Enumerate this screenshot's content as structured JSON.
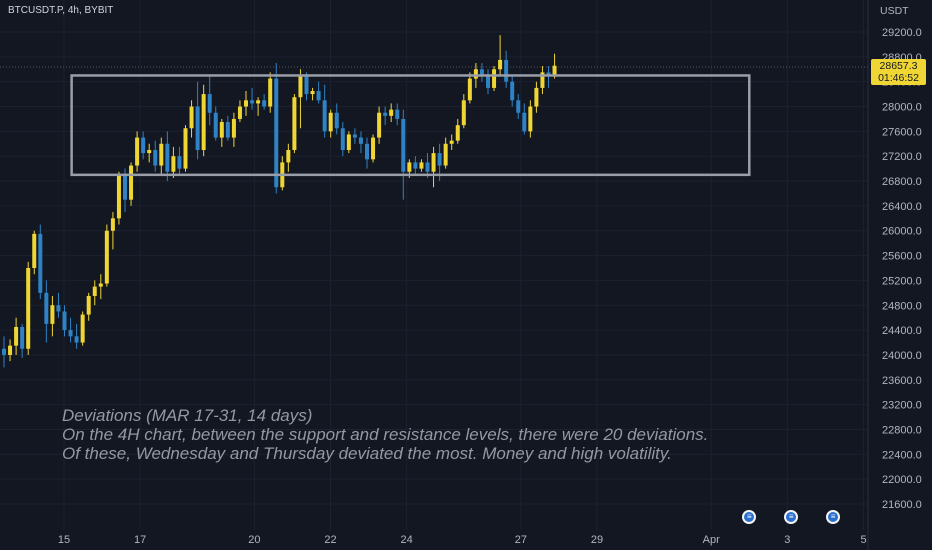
{
  "header": {
    "symbol": "BTCUSDT.P, 4h, BYBIT",
    "currency": "USDT"
  },
  "price_tag": {
    "price": "28657.3",
    "countdown": "01:46:52"
  },
  "annotation": {
    "line1": "Deviations (MAR 17-31, 14 days)",
    "line2": "On the 4H chart, between the support and resistance levels, there were 20 deviations.",
    "line3": "Of these, Wednesday and Thursday deviated the most. Money and high volatility."
  },
  "colors": {
    "up": "#f0d635",
    "down": "#2f82c4",
    "background": "#131722",
    "box": "#9a9ea8",
    "tag": "#f0d635"
  },
  "chart_data": {
    "type": "candlestick",
    "y_ticks": [
      "29200.0",
      "28800.0",
      "28400.0",
      "28000.0",
      "27600.0",
      "27200.0",
      "26800.0",
      "26400.0",
      "26000.0",
      "25600.0",
      "25200.0",
      "24800.0",
      "24400.0",
      "24000.0",
      "23600.0",
      "23200.0",
      "22800.0",
      "22400.0",
      "22000.0",
      "21600.0"
    ],
    "x_ticks": [
      {
        "label": "15",
        "day": 15
      },
      {
        "label": "17",
        "day": 17
      },
      {
        "label": "20",
        "day": 20
      },
      {
        "label": "22",
        "day": 22
      },
      {
        "label": "24",
        "day": 24
      },
      {
        "label": "27",
        "day": 27
      },
      {
        "label": "29",
        "day": 29
      },
      {
        "label": "Apr",
        "day": 32
      },
      {
        "label": "3",
        "day": 34
      },
      {
        "label": "5",
        "day": 36
      }
    ],
    "last_price": 28657.3,
    "range_box": {
      "start_day": 15.2,
      "end_day": 33.0,
      "resistance": 28500,
      "support": 26900
    },
    "event_icons": [
      33.0,
      34.1,
      35.2
    ],
    "candles": [
      [
        24100,
        24300,
        23800,
        24000
      ],
      [
        24000,
        24250,
        23900,
        24150
      ],
      [
        24150,
        24600,
        24000,
        24450
      ],
      [
        24450,
        24500,
        23950,
        24100
      ],
      [
        24100,
        25500,
        24000,
        25400
      ],
      [
        25400,
        26000,
        25300,
        25950
      ],
      [
        25950,
        26100,
        24900,
        25000
      ],
      [
        25000,
        25200,
        24200,
        24500
      ],
      [
        24500,
        24950,
        24300,
        24800
      ],
      [
        24800,
        25000,
        24600,
        24700
      ],
      [
        24700,
        24800,
        24300,
        24400
      ],
      [
        24400,
        24600,
        24200,
        24300
      ],
      [
        24300,
        24500,
        24100,
        24200
      ],
      [
        24200,
        24700,
        24150,
        24650
      ],
      [
        24650,
        25000,
        24550,
        24950
      ],
      [
        24950,
        25200,
        24800,
        25100
      ],
      [
        25100,
        25300,
        24900,
        25150
      ],
      [
        25150,
        26100,
        25100,
        26000
      ],
      [
        26000,
        26300,
        25700,
        26200
      ],
      [
        26200,
        26950,
        26100,
        26900
      ],
      [
        26900,
        27000,
        26300,
        26500
      ],
      [
        26500,
        27100,
        26400,
        27050
      ],
      [
        27050,
        27600,
        26950,
        27500
      ],
      [
        27500,
        27600,
        27150,
        27250
      ],
      [
        27250,
        27400,
        27100,
        27300
      ],
      [
        27300,
        27450,
        26950,
        27050
      ],
      [
        27050,
        27500,
        26900,
        27400
      ],
      [
        27400,
        27600,
        26800,
        26950
      ],
      [
        26950,
        27350,
        26850,
        27200
      ],
      [
        27200,
        27350,
        26900,
        27000
      ],
      [
        27000,
        27700,
        26950,
        27650
      ],
      [
        27650,
        28100,
        27500,
        28000
      ],
      [
        28000,
        28400,
        27150,
        27300
      ],
      [
        27300,
        28350,
        27200,
        28200
      ],
      [
        28200,
        28500,
        27700,
        27900
      ],
      [
        27900,
        28000,
        27450,
        27500
      ],
      [
        27500,
        27800,
        27350,
        27750
      ],
      [
        27750,
        27850,
        27450,
        27500
      ],
      [
        27500,
        27900,
        27350,
        27800
      ],
      [
        27800,
        28100,
        27750,
        28000
      ],
      [
        28000,
        28250,
        27850,
        28100
      ],
      [
        28100,
        28300,
        27950,
        28050
      ],
      [
        28050,
        28150,
        27850,
        28100
      ],
      [
        28100,
        28200,
        27950,
        28000
      ],
      [
        28000,
        28550,
        27900,
        28450
      ],
      [
        28450,
        28700,
        26600,
        26700
      ],
      [
        26700,
        27200,
        26650,
        27100
      ],
      [
        27100,
        27400,
        26950,
        27300
      ],
      [
        27300,
        28200,
        27250,
        28150
      ],
      [
        28150,
        28600,
        27650,
        28500
      ],
      [
        28500,
        28550,
        28100,
        28200
      ],
      [
        28200,
        28300,
        28100,
        28250
      ],
      [
        28250,
        28400,
        28050,
        28100
      ],
      [
        28100,
        28350,
        27500,
        27600
      ],
      [
        27600,
        27950,
        27500,
        27900
      ],
      [
        27900,
        28050,
        27550,
        27650
      ],
      [
        27650,
        27750,
        27200,
        27300
      ],
      [
        27300,
        27600,
        27250,
        27550
      ],
      [
        27550,
        27650,
        27400,
        27500
      ],
      [
        27500,
        27600,
        27250,
        27400
      ],
      [
        27400,
        27500,
        27000,
        27150
      ],
      [
        27150,
        27550,
        27100,
        27500
      ],
      [
        27500,
        28000,
        27400,
        27900
      ],
      [
        27900,
        28000,
        27700,
        27850
      ],
      [
        27850,
        28050,
        27750,
        27950
      ],
      [
        27950,
        28050,
        27700,
        27800
      ],
      [
        27800,
        27950,
        26500,
        26950
      ],
      [
        26950,
        27150,
        26850,
        27100
      ],
      [
        27100,
        27200,
        26900,
        27000
      ],
      [
        27000,
        27150,
        26950,
        27100
      ],
      [
        27100,
        27250,
        26850,
        26950
      ],
      [
        26950,
        27350,
        26700,
        27250
      ],
      [
        27250,
        27400,
        26800,
        27050
      ],
      [
        27050,
        27500,
        27000,
        27400
      ],
      [
        27400,
        27550,
        27300,
        27450
      ],
      [
        27450,
        27800,
        27400,
        27700
      ],
      [
        27700,
        28200,
        27650,
        28100
      ],
      [
        28100,
        28550,
        28050,
        28450
      ],
      [
        28450,
        28700,
        28300,
        28600
      ],
      [
        28600,
        28700,
        28400,
        28500
      ],
      [
        28500,
        28600,
        28200,
        28300
      ],
      [
        28300,
        28650,
        28250,
        28600
      ],
      [
        28600,
        29150,
        28500,
        28750
      ],
      [
        28750,
        28900,
        28300,
        28400
      ],
      [
        28400,
        28500,
        28000,
        28100
      ],
      [
        28100,
        28200,
        27800,
        27900
      ],
      [
        27900,
        28050,
        27550,
        27600
      ],
      [
        27600,
        28100,
        27500,
        28000
      ],
      [
        28000,
        28400,
        27900,
        28300
      ],
      [
        28300,
        28650,
        28200,
        28550
      ],
      [
        28550,
        28650,
        28300,
        28500
      ],
      [
        28500,
        28850,
        28450,
        28657.3
      ]
    ]
  }
}
